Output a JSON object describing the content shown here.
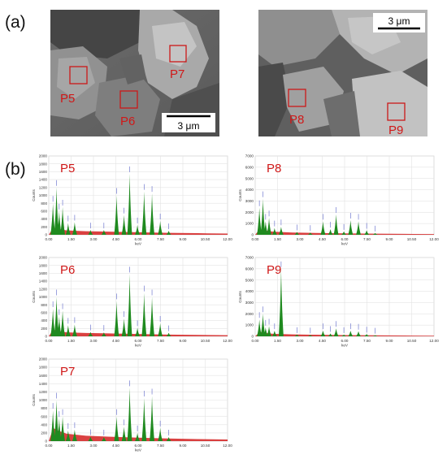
{
  "panel_labels": {
    "a": "(a)",
    "b": "(b)"
  },
  "sem": {
    "left": {
      "scale_bar": "3 μm",
      "points": [
        "P5",
        "P6",
        "P7"
      ]
    },
    "right": {
      "scale_bar": "3 μm",
      "points": [
        "P8",
        "P9"
      ]
    }
  },
  "colors": {
    "spectrum_fill": "#1f8a1f",
    "background_fill": "#d42020",
    "point_label": "#d01818",
    "peak_label": "#5a64c8",
    "grid": "#e3e3e3"
  },
  "chart_data": [
    {
      "type": "area",
      "title": "P5",
      "xlabel": "keV",
      "ylabel": "Counts",
      "xlim": [
        0,
        12
      ],
      "ylim": [
        0,
        2000
      ],
      "x_ticks": [
        "0.00",
        "1.50",
        "3.00",
        "4.50",
        "6.00",
        "7.50",
        "9.00",
        "10.50",
        "12.00"
      ],
      "y_ticks": [
        "0",
        "200",
        "400",
        "600",
        "800",
        "1000",
        "1200",
        "1400",
        "1600",
        "1800",
        "2000"
      ],
      "peaks": [
        {
          "x": 0.28,
          "y": 800
        },
        {
          "x": 0.52,
          "y": 1200
        },
        {
          "x": 0.7,
          "y": 600
        },
        {
          "x": 0.93,
          "y": 700
        },
        {
          "x": 1.3,
          "y": 300
        },
        {
          "x": 1.74,
          "y": 320
        },
        {
          "x": 2.8,
          "y": 120
        },
        {
          "x": 3.7,
          "y": 120
        },
        {
          "x": 4.55,
          "y": 1000
        },
        {
          "x": 5.05,
          "y": 500
        },
        {
          "x": 5.43,
          "y": 1550
        },
        {
          "x": 5.95,
          "y": 250
        },
        {
          "x": 6.4,
          "y": 1100
        },
        {
          "x": 6.93,
          "y": 1050
        },
        {
          "x": 7.48,
          "y": 350
        },
        {
          "x": 8.05,
          "y": 100
        }
      ],
      "background": [
        {
          "x": 0.3,
          "y": 180
        },
        {
          "x": 0.6,
          "y": 150
        },
        {
          "x": 1.2,
          "y": 110
        },
        {
          "x": 2.5,
          "y": 90
        },
        {
          "x": 4.0,
          "y": 80
        },
        {
          "x": 6.0,
          "y": 65
        },
        {
          "x": 8.0,
          "y": 50
        },
        {
          "x": 10.0,
          "y": 40
        },
        {
          "x": 12.0,
          "y": 30
        }
      ]
    },
    {
      "type": "area",
      "title": "P8",
      "xlabel": "keV",
      "ylabel": "Counts",
      "xlim": [
        0,
        12
      ],
      "ylim": [
        0,
        7000
      ],
      "x_ticks": [
        "0.00",
        "1.50",
        "3.00",
        "4.50",
        "6.00",
        "7.50",
        "9.00",
        "10.50",
        "12.00"
      ],
      "y_ticks": [
        "0",
        "1000",
        "2000",
        "3000",
        "4000",
        "5000",
        "6000",
        "7000"
      ],
      "peaks": [
        {
          "x": 0.28,
          "y": 2400
        },
        {
          "x": 0.52,
          "y": 3200
        },
        {
          "x": 0.7,
          "y": 1200
        },
        {
          "x": 0.93,
          "y": 1500
        },
        {
          "x": 1.3,
          "y": 600
        },
        {
          "x": 1.74,
          "y": 700
        },
        {
          "x": 2.8,
          "y": 250
        },
        {
          "x": 3.7,
          "y": 200
        },
        {
          "x": 4.55,
          "y": 1200
        },
        {
          "x": 5.05,
          "y": 500
        },
        {
          "x": 5.43,
          "y": 1800
        },
        {
          "x": 5.95,
          "y": 300
        },
        {
          "x": 6.4,
          "y": 1300
        },
        {
          "x": 6.93,
          "y": 1200
        },
        {
          "x": 7.48,
          "y": 400
        },
        {
          "x": 8.05,
          "y": 150
        }
      ],
      "background": [
        {
          "x": 0.3,
          "y": 500
        },
        {
          "x": 0.6,
          "y": 400
        },
        {
          "x": 1.2,
          "y": 280
        },
        {
          "x": 2.5,
          "y": 200
        },
        {
          "x": 4.0,
          "y": 160
        },
        {
          "x": 6.0,
          "y": 130
        },
        {
          "x": 8.0,
          "y": 100
        },
        {
          "x": 10.0,
          "y": 80
        },
        {
          "x": 12.0,
          "y": 60
        }
      ]
    },
    {
      "type": "area",
      "title": "P6",
      "xlabel": "keV",
      "ylabel": "Counts",
      "xlim": [
        0,
        12
      ],
      "ylim": [
        0,
        2000
      ],
      "x_ticks": [
        "0.00",
        "1.50",
        "3.00",
        "4.50",
        "6.00",
        "7.50",
        "9.00",
        "10.50",
        "12.00"
      ],
      "y_ticks": [
        "0",
        "200",
        "400",
        "600",
        "800",
        "1000",
        "1200",
        "1400",
        "1600",
        "1800",
        "2000"
      ],
      "peaks": [
        {
          "x": 0.28,
          "y": 700
        },
        {
          "x": 0.52,
          "y": 1000
        },
        {
          "x": 0.7,
          "y": 500
        },
        {
          "x": 0.93,
          "y": 650
        },
        {
          "x": 1.3,
          "y": 280
        },
        {
          "x": 1.74,
          "y": 300
        },
        {
          "x": 2.8,
          "y": 110
        },
        {
          "x": 3.7,
          "y": 100
        },
        {
          "x": 4.55,
          "y": 900
        },
        {
          "x": 5.05,
          "y": 450
        },
        {
          "x": 5.43,
          "y": 1580
        },
        {
          "x": 5.95,
          "y": 220
        },
        {
          "x": 6.4,
          "y": 1100
        },
        {
          "x": 6.93,
          "y": 1000
        },
        {
          "x": 7.48,
          "y": 330
        },
        {
          "x": 8.05,
          "y": 90
        }
      ],
      "background": [
        {
          "x": 0.3,
          "y": 170
        },
        {
          "x": 0.6,
          "y": 140
        },
        {
          "x": 1.2,
          "y": 100
        },
        {
          "x": 2.5,
          "y": 85
        },
        {
          "x": 4.0,
          "y": 75
        },
        {
          "x": 6.0,
          "y": 60
        },
        {
          "x": 8.0,
          "y": 45
        },
        {
          "x": 10.0,
          "y": 35
        },
        {
          "x": 12.0,
          "y": 28
        }
      ]
    },
    {
      "type": "area",
      "title": "P9",
      "xlabel": "keV",
      "ylabel": "Counts",
      "xlim": [
        0,
        12
      ],
      "ylim": [
        0,
        7000
      ],
      "x_ticks": [
        "0.00",
        "1.50",
        "3.00",
        "4.50",
        "6.00",
        "7.50",
        "9.00",
        "10.50",
        "12.00"
      ],
      "y_ticks": [
        "0",
        "1000",
        "2000",
        "3000",
        "4000",
        "5000",
        "6000",
        "7000"
      ],
      "peaks": [
        {
          "x": 0.28,
          "y": 1500
        },
        {
          "x": 0.52,
          "y": 2000
        },
        {
          "x": 0.7,
          "y": 800
        },
        {
          "x": 0.93,
          "y": 900
        },
        {
          "x": 1.3,
          "y": 500
        },
        {
          "x": 1.74,
          "y": 6000
        },
        {
          "x": 2.8,
          "y": 150
        },
        {
          "x": 3.7,
          "y": 120
        },
        {
          "x": 4.55,
          "y": 500
        },
        {
          "x": 5.05,
          "y": 250
        },
        {
          "x": 5.43,
          "y": 700
        },
        {
          "x": 5.95,
          "y": 150
        },
        {
          "x": 6.4,
          "y": 500
        },
        {
          "x": 6.93,
          "y": 450
        },
        {
          "x": 7.48,
          "y": 200
        },
        {
          "x": 8.05,
          "y": 100
        }
      ],
      "background": [
        {
          "x": 0.3,
          "y": 400
        },
        {
          "x": 0.6,
          "y": 320
        },
        {
          "x": 1.2,
          "y": 230
        },
        {
          "x": 2.5,
          "y": 170
        },
        {
          "x": 4.0,
          "y": 140
        },
        {
          "x": 6.0,
          "y": 110
        },
        {
          "x": 8.0,
          "y": 90
        },
        {
          "x": 10.0,
          "y": 70
        },
        {
          "x": 12.0,
          "y": 55
        }
      ]
    },
    {
      "type": "area",
      "title": "P7",
      "xlabel": "keV",
      "ylabel": "Counts",
      "xlim": [
        0,
        12
      ],
      "ylim": [
        0,
        2000
      ],
      "x_ticks": [
        "0.00",
        "1.50",
        "3.00",
        "4.50",
        "6.00",
        "7.50",
        "9.00",
        "10.50",
        "12.00"
      ],
      "y_ticks": [
        "0",
        "200",
        "400",
        "600",
        "800",
        "1000",
        "1200",
        "1400",
        "1600",
        "1800",
        "2000"
      ],
      "peaks": [
        {
          "x": 0.28,
          "y": 750
        },
        {
          "x": 0.52,
          "y": 1000
        },
        {
          "x": 0.7,
          "y": 550
        },
        {
          "x": 0.93,
          "y": 600
        },
        {
          "x": 1.3,
          "y": 260
        },
        {
          "x": 1.74,
          "y": 280
        },
        {
          "x": 2.8,
          "y": 110
        },
        {
          "x": 3.7,
          "y": 100
        },
        {
          "x": 4.55,
          "y": 600
        },
        {
          "x": 5.05,
          "y": 350
        },
        {
          "x": 5.43,
          "y": 1300
        },
        {
          "x": 5.95,
          "y": 200
        },
        {
          "x": 6.4,
          "y": 1050
        },
        {
          "x": 6.93,
          "y": 1100
        },
        {
          "x": 7.48,
          "y": 320
        },
        {
          "x": 8.05,
          "y": 100
        }
      ],
      "background": [
        {
          "x": 0.3,
          "y": 320
        },
        {
          "x": 0.6,
          "y": 260
        },
        {
          "x": 1.2,
          "y": 180
        },
        {
          "x": 2.5,
          "y": 130
        },
        {
          "x": 4.0,
          "y": 110
        },
        {
          "x": 6.0,
          "y": 85
        },
        {
          "x": 8.0,
          "y": 65
        },
        {
          "x": 10.0,
          "y": 50
        },
        {
          "x": 12.0,
          "y": 40
        }
      ]
    }
  ]
}
